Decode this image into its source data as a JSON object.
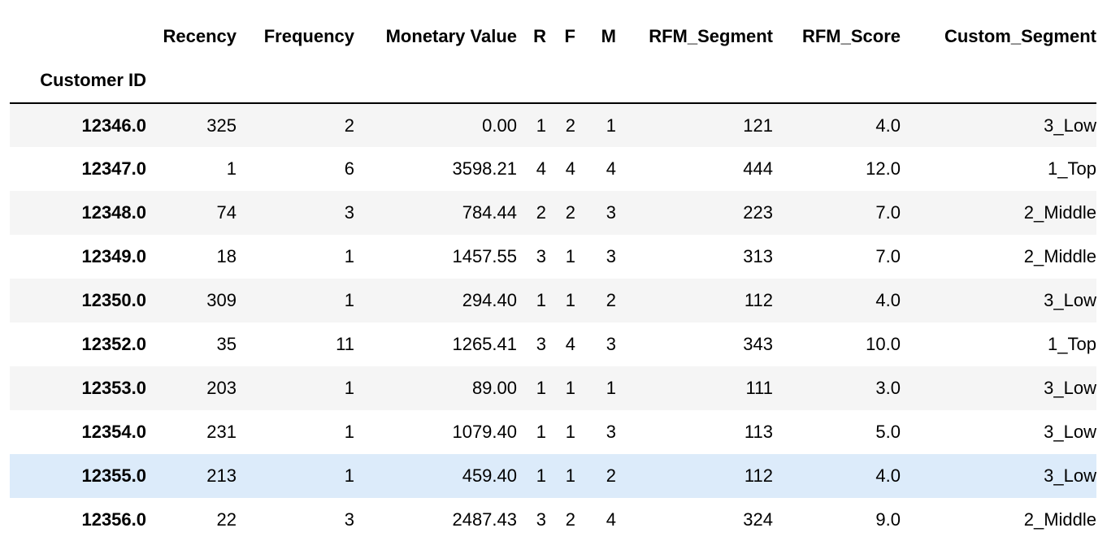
{
  "table": {
    "index_name": "Customer ID",
    "columns": [
      "Recency",
      "Frequency",
      "Monetary Value",
      "R",
      "F",
      "M",
      "RFM_Segment",
      "RFM_Score",
      "Custom_Segment"
    ],
    "rows": [
      {
        "id": "12346.0",
        "cells": [
          "325",
          "2",
          "0.00",
          "1",
          "2",
          "1",
          "121",
          "4.0",
          "3_Low"
        ]
      },
      {
        "id": "12347.0",
        "cells": [
          "1",
          "6",
          "3598.21",
          "4",
          "4",
          "4",
          "444",
          "12.0",
          "1_Top"
        ]
      },
      {
        "id": "12348.0",
        "cells": [
          "74",
          "3",
          "784.44",
          "2",
          "2",
          "3",
          "223",
          "7.0",
          "2_Middle"
        ]
      },
      {
        "id": "12349.0",
        "cells": [
          "18",
          "1",
          "1457.55",
          "3",
          "1",
          "3",
          "313",
          "7.0",
          "2_Middle"
        ]
      },
      {
        "id": "12350.0",
        "cells": [
          "309",
          "1",
          "294.40",
          "1",
          "1",
          "2",
          "112",
          "4.0",
          "3_Low"
        ]
      },
      {
        "id": "12352.0",
        "cells": [
          "35",
          "11",
          "1265.41",
          "3",
          "4",
          "3",
          "343",
          "10.0",
          "1_Top"
        ]
      },
      {
        "id": "12353.0",
        "cells": [
          "203",
          "1",
          "89.00",
          "1",
          "1",
          "1",
          "111",
          "3.0",
          "3_Low"
        ]
      },
      {
        "id": "12354.0",
        "cells": [
          "231",
          "1",
          "1079.40",
          "1",
          "1",
          "3",
          "113",
          "5.0",
          "3_Low"
        ]
      },
      {
        "id": "12355.0",
        "cells": [
          "213",
          "1",
          "459.40",
          "1",
          "1",
          "2",
          "112",
          "4.0",
          "3_Low"
        ]
      },
      {
        "id": "12356.0",
        "cells": [
          "22",
          "3",
          "2487.43",
          "3",
          "2",
          "4",
          "324",
          "9.0",
          "2_Middle"
        ]
      }
    ],
    "hovered_row": 8
  },
  "colors": {
    "row_stripe": "#f5f5f5",
    "row_hover": "#dcebfa",
    "header_rule": "#000000"
  }
}
